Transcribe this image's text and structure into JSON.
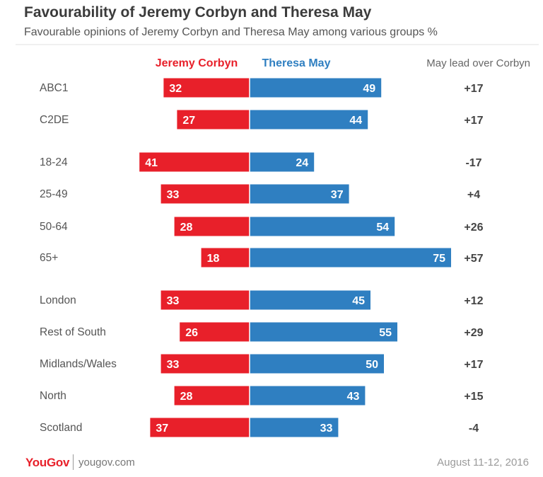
{
  "header": {
    "title": "Favourability of Jeremy Corbyn and Theresa May",
    "subtitle": "Favourable opinions of Jeremy Corbyn and Theresa May among various groups %"
  },
  "footer": {
    "brand": "YouGov",
    "url": "yougov.com",
    "date": "August 11-12, 2016"
  },
  "colors": {
    "corbyn": "#e8202a",
    "may": "#2f7fc1",
    "label": "#555555",
    "lead": "#444444"
  },
  "chart_data": {
    "type": "bar",
    "orientation": "horizontal-diverging",
    "lead_header": "May lead over Corbyn",
    "categories": [
      "ABC1",
      "C2DE",
      "18-24",
      "25-49",
      "50-64",
      "65+",
      "London",
      "Rest of South",
      "Midlands/Wales",
      "North",
      "Scotland"
    ],
    "groups": [
      [
        0,
        1
      ],
      [
        2,
        3,
        4,
        5
      ],
      [
        6,
        7,
        8,
        9,
        10
      ]
    ],
    "series": [
      {
        "name": "Jeremy Corbyn",
        "values": [
          32,
          27,
          41,
          33,
          28,
          18,
          33,
          26,
          33,
          28,
          37
        ]
      },
      {
        "name": "Theresa May",
        "values": [
          49,
          44,
          24,
          37,
          54,
          75,
          45,
          55,
          50,
          43,
          33
        ]
      }
    ],
    "lead": [
      "+17",
      "+17",
      "-17",
      "+4",
      "+26",
      "+57",
      "+12",
      "+29",
      "+17",
      "+15",
      "-4"
    ],
    "grid": false,
    "legend": "top"
  }
}
